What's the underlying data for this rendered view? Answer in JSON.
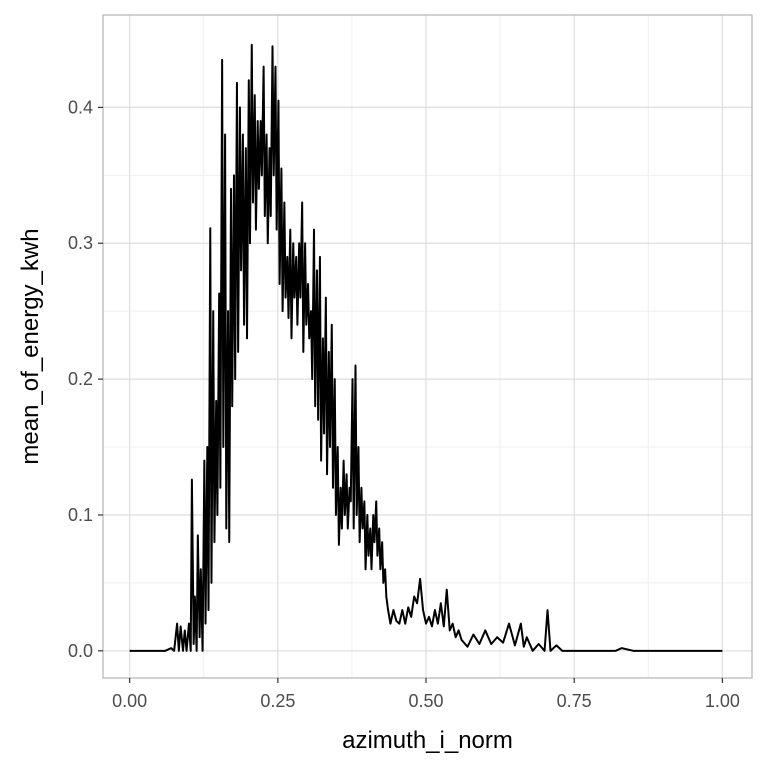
{
  "chart_data": {
    "type": "line",
    "title": "",
    "xlabel": "azimuth_i_norm",
    "ylabel": "mean_of_energy_kwh",
    "xlim": [
      -0.045,
      1.05
    ],
    "ylim": [
      -0.02,
      0.468
    ],
    "x_ticks": [
      0.0,
      0.25,
      0.5,
      0.75,
      1.0
    ],
    "x_tick_labels": [
      "0.00",
      "0.25",
      "0.50",
      "0.75",
      "1.00"
    ],
    "y_ticks": [
      0.0,
      0.1,
      0.2,
      0.3,
      0.4
    ],
    "y_tick_labels": [
      "0.0",
      "0.1",
      "0.2",
      "0.3",
      "0.4"
    ],
    "grid": true,
    "line_color": "#000000",
    "panel_border_color": "#b3b3b3",
    "grid_major_color": "#dedede",
    "grid_minor_color": "#efefef",
    "series": [
      {
        "x": [
          0.0,
          0.06,
          0.07,
          0.075,
          0.08,
          0.083,
          0.086,
          0.09,
          0.093,
          0.096,
          0.1,
          0.103,
          0.105,
          0.108,
          0.11,
          0.113,
          0.115,
          0.118,
          0.12,
          0.123,
          0.126,
          0.128,
          0.131,
          0.133,
          0.136,
          0.138,
          0.141,
          0.143,
          0.146,
          0.148,
          0.151,
          0.153,
          0.156,
          0.158,
          0.161,
          0.163,
          0.166,
          0.168,
          0.171,
          0.173,
          0.176,
          0.178,
          0.181,
          0.183,
          0.186,
          0.188,
          0.191,
          0.193,
          0.196,
          0.198,
          0.201,
          0.203,
          0.206,
          0.208,
          0.211,
          0.213,
          0.216,
          0.218,
          0.221,
          0.223,
          0.226,
          0.228,
          0.231,
          0.233,
          0.236,
          0.238,
          0.241,
          0.243,
          0.246,
          0.248,
          0.251,
          0.253,
          0.256,
          0.258,
          0.261,
          0.263,
          0.266,
          0.268,
          0.271,
          0.273,
          0.276,
          0.278,
          0.281,
          0.283,
          0.286,
          0.288,
          0.291,
          0.293,
          0.296,
          0.298,
          0.301,
          0.303,
          0.306,
          0.308,
          0.311,
          0.313,
          0.316,
          0.318,
          0.321,
          0.323,
          0.326,
          0.328,
          0.331,
          0.333,
          0.336,
          0.338,
          0.341,
          0.343,
          0.346,
          0.348,
          0.351,
          0.353,
          0.356,
          0.358,
          0.361,
          0.363,
          0.366,
          0.368,
          0.371,
          0.373,
          0.376,
          0.378,
          0.381,
          0.383,
          0.386,
          0.388,
          0.391,
          0.393,
          0.396,
          0.398,
          0.401,
          0.403,
          0.406,
          0.408,
          0.411,
          0.413,
          0.416,
          0.418,
          0.421,
          0.423,
          0.426,
          0.428,
          0.431,
          0.433,
          0.436,
          0.44,
          0.445,
          0.45,
          0.455,
          0.46,
          0.465,
          0.47,
          0.475,
          0.48,
          0.485,
          0.49,
          0.495,
          0.5,
          0.505,
          0.51,
          0.515,
          0.52,
          0.525,
          0.53,
          0.535,
          0.54,
          0.545,
          0.55,
          0.555,
          0.56,
          0.57,
          0.58,
          0.59,
          0.6,
          0.61,
          0.62,
          0.63,
          0.64,
          0.65,
          0.66,
          0.665,
          0.67,
          0.68,
          0.69,
          0.7,
          0.705,
          0.71,
          0.72,
          0.73,
          0.75,
          0.8,
          0.82,
          0.83,
          0.85,
          0.9,
          1.0
        ],
        "y": [
          0.0,
          0.0,
          0.002,
          0.0,
          0.02,
          0.0,
          0.018,
          0.0,
          0.015,
          0.0,
          0.02,
          0.0,
          0.126,
          0.005,
          0.04,
          0.0,
          0.085,
          0.01,
          0.06,
          0.0,
          0.14,
          0.02,
          0.15,
          0.03,
          0.311,
          0.05,
          0.25,
          0.08,
          0.184,
          0.1,
          0.263,
          0.12,
          0.435,
          0.15,
          0.38,
          0.09,
          0.25,
          0.08,
          0.34,
          0.18,
          0.35,
          0.2,
          0.418,
          0.22,
          0.4,
          0.28,
          0.38,
          0.24,
          0.37,
          0.23,
          0.42,
          0.3,
          0.446,
          0.33,
          0.409,
          0.31,
          0.39,
          0.34,
          0.39,
          0.35,
          0.43,
          0.32,
          0.38,
          0.3,
          0.37,
          0.32,
          0.445,
          0.35,
          0.43,
          0.31,
          0.405,
          0.27,
          0.355,
          0.25,
          0.33,
          0.26,
          0.29,
          0.245,
          0.31,
          0.23,
          0.3,
          0.26,
          0.29,
          0.24,
          0.3,
          0.26,
          0.33,
          0.22,
          0.3,
          0.24,
          0.27,
          0.23,
          0.25,
          0.2,
          0.31,
          0.18,
          0.28,
          0.17,
          0.29,
          0.14,
          0.23,
          0.16,
          0.26,
          0.13,
          0.22,
          0.15,
          0.24,
          0.12,
          0.2,
          0.1,
          0.15,
          0.078,
          0.12,
          0.09,
          0.14,
          0.1,
          0.13,
          0.09,
          0.12,
          0.11,
          0.2,
          0.09,
          0.21,
          0.1,
          0.15,
          0.08,
          0.12,
          0.09,
          0.11,
          0.06,
          0.1,
          0.07,
          0.09,
          0.06,
          0.1,
          0.08,
          0.11,
          0.07,
          0.09,
          0.06,
          0.08,
          0.05,
          0.06,
          0.04,
          0.03,
          0.02,
          0.03,
          0.022,
          0.02,
          0.03,
          0.02,
          0.032,
          0.025,
          0.04,
          0.035,
          0.053,
          0.03,
          0.02,
          0.025,
          0.018,
          0.03,
          0.02,
          0.035,
          0.018,
          0.045,
          0.015,
          0.02,
          0.01,
          0.015,
          0.008,
          0.003,
          0.012,
          0.005,
          0.015,
          0.005,
          0.01,
          0.006,
          0.02,
          0.004,
          0.02,
          0.003,
          0.01,
          0.0,
          0.005,
          0.0,
          0.03,
          0.0,
          0.004,
          0.0,
          0.0,
          0.0,
          0.0,
          0.002,
          0.0,
          0.0,
          0.0
        ]
      }
    ]
  }
}
